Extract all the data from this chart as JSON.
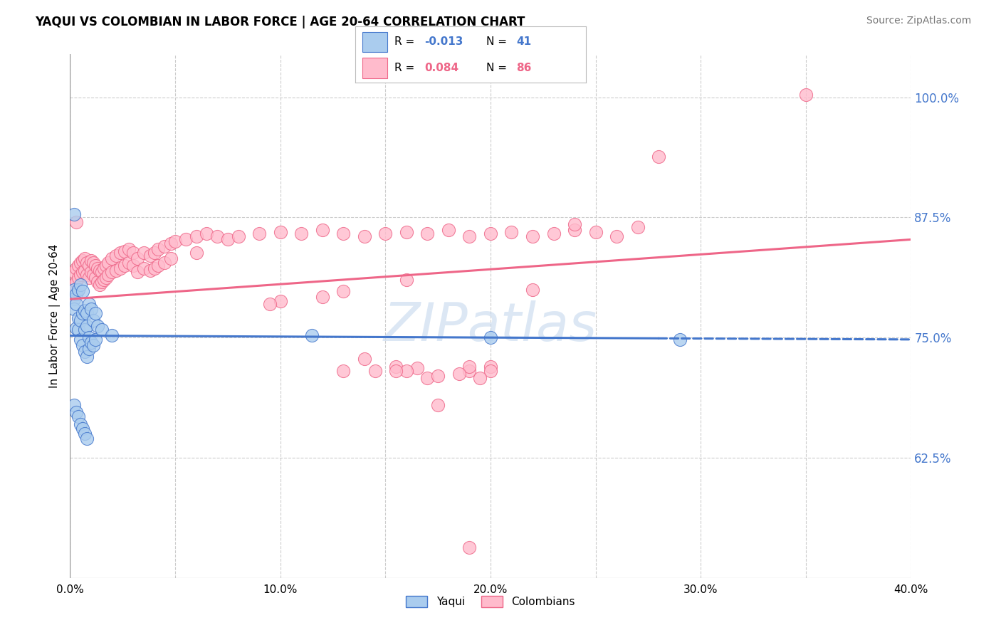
{
  "title": "YAQUI VS COLOMBIAN IN LABOR FORCE | AGE 20-64 CORRELATION CHART",
  "source": "Source: ZipAtlas.com",
  "ylabel": "In Labor Force | Age 20-64",
  "xlim_min": 0.0,
  "xlim_max": 0.4,
  "ylim_min": 0.5,
  "ylim_max": 1.045,
  "ytick_positions": [
    0.625,
    0.75,
    0.875,
    1.0
  ],
  "ytick_labels": [
    "62.5%",
    "75.0%",
    "87.5%",
    "100.0%"
  ],
  "xtick_positions": [
    0.0,
    0.1,
    0.2,
    0.3,
    0.4
  ],
  "xtick_labels": [
    "0.0%",
    "10.0%",
    "20.0%",
    "30.0%",
    "40.0%"
  ],
  "yaqui_fill": "#aaccee",
  "yaqui_edge": "#4477cc",
  "colombian_fill": "#ffbbcc",
  "colombian_edge": "#ee6688",
  "watermark_text": "ZIPatlas",
  "legend_r_yaqui": "-0.013",
  "legend_n_yaqui": "41",
  "legend_r_colombian": "0.084",
  "legend_n_colombian": "86",
  "blue_line_break": 0.28,
  "yaqui_scatter": [
    [
      0.002,
      0.8
    ],
    [
      0.002,
      0.79
    ],
    [
      0.002,
      0.78
    ],
    [
      0.003,
      0.795
    ],
    [
      0.003,
      0.785
    ],
    [
      0.003,
      0.76
    ],
    [
      0.004,
      0.8
    ],
    [
      0.004,
      0.77
    ],
    [
      0.004,
      0.758
    ],
    [
      0.005,
      0.805
    ],
    [
      0.005,
      0.768
    ],
    [
      0.005,
      0.748
    ],
    [
      0.006,
      0.798
    ],
    [
      0.006,
      0.775
    ],
    [
      0.006,
      0.742
    ],
    [
      0.007,
      0.778
    ],
    [
      0.007,
      0.758
    ],
    [
      0.007,
      0.735
    ],
    [
      0.008,
      0.775
    ],
    [
      0.008,
      0.762
    ],
    [
      0.008,
      0.73
    ],
    [
      0.009,
      0.785
    ],
    [
      0.009,
      0.75
    ],
    [
      0.009,
      0.738
    ],
    [
      0.01,
      0.78
    ],
    [
      0.01,
      0.745
    ],
    [
      0.011,
      0.768
    ],
    [
      0.011,
      0.742
    ],
    [
      0.012,
      0.775
    ],
    [
      0.012,
      0.748
    ],
    [
      0.013,
      0.762
    ],
    [
      0.015,
      0.758
    ],
    [
      0.02,
      0.752
    ],
    [
      0.002,
      0.68
    ],
    [
      0.003,
      0.672
    ],
    [
      0.004,
      0.668
    ],
    [
      0.005,
      0.66
    ],
    [
      0.006,
      0.655
    ],
    [
      0.007,
      0.65
    ],
    [
      0.008,
      0.645
    ],
    [
      0.002,
      0.878
    ],
    [
      0.115,
      0.752
    ],
    [
      0.2,
      0.75
    ],
    [
      0.29,
      0.748
    ]
  ],
  "colombian_scatter": [
    [
      0.002,
      0.818
    ],
    [
      0.002,
      0.805
    ],
    [
      0.003,
      0.822
    ],
    [
      0.003,
      0.808
    ],
    [
      0.004,
      0.825
    ],
    [
      0.004,
      0.812
    ],
    [
      0.005,
      0.828
    ],
    [
      0.005,
      0.815
    ],
    [
      0.006,
      0.83
    ],
    [
      0.006,
      0.818
    ],
    [
      0.007,
      0.832
    ],
    [
      0.007,
      0.82
    ],
    [
      0.008,
      0.828
    ],
    [
      0.008,
      0.815
    ],
    [
      0.009,
      0.825
    ],
    [
      0.009,
      0.812
    ],
    [
      0.01,
      0.83
    ],
    [
      0.01,
      0.818
    ],
    [
      0.011,
      0.828
    ],
    [
      0.011,
      0.815
    ],
    [
      0.012,
      0.825
    ],
    [
      0.012,
      0.812
    ],
    [
      0.013,
      0.822
    ],
    [
      0.013,
      0.808
    ],
    [
      0.014,
      0.82
    ],
    [
      0.014,
      0.805
    ],
    [
      0.015,
      0.818
    ],
    [
      0.015,
      0.808
    ],
    [
      0.016,
      0.822
    ],
    [
      0.016,
      0.81
    ],
    [
      0.017,
      0.825
    ],
    [
      0.017,
      0.812
    ],
    [
      0.018,
      0.828
    ],
    [
      0.018,
      0.815
    ],
    [
      0.02,
      0.832
    ],
    [
      0.02,
      0.818
    ],
    [
      0.022,
      0.835
    ],
    [
      0.022,
      0.82
    ],
    [
      0.024,
      0.838
    ],
    [
      0.024,
      0.822
    ],
    [
      0.026,
      0.84
    ],
    [
      0.026,
      0.825
    ],
    [
      0.028,
      0.842
    ],
    [
      0.028,
      0.828
    ],
    [
      0.03,
      0.838
    ],
    [
      0.03,
      0.825
    ],
    [
      0.032,
      0.832
    ],
    [
      0.032,
      0.818
    ],
    [
      0.035,
      0.838
    ],
    [
      0.035,
      0.822
    ],
    [
      0.038,
      0.835
    ],
    [
      0.038,
      0.82
    ],
    [
      0.04,
      0.838
    ],
    [
      0.04,
      0.822
    ],
    [
      0.042,
      0.842
    ],
    [
      0.042,
      0.825
    ],
    [
      0.045,
      0.845
    ],
    [
      0.045,
      0.828
    ],
    [
      0.048,
      0.848
    ],
    [
      0.048,
      0.832
    ],
    [
      0.05,
      0.85
    ],
    [
      0.055,
      0.852
    ],
    [
      0.06,
      0.855
    ],
    [
      0.06,
      0.838
    ],
    [
      0.065,
      0.858
    ],
    [
      0.07,
      0.855
    ],
    [
      0.075,
      0.852
    ],
    [
      0.08,
      0.855
    ],
    [
      0.09,
      0.858
    ],
    [
      0.1,
      0.86
    ],
    [
      0.11,
      0.858
    ],
    [
      0.12,
      0.862
    ],
    [
      0.13,
      0.858
    ],
    [
      0.14,
      0.855
    ],
    [
      0.15,
      0.858
    ],
    [
      0.16,
      0.86
    ],
    [
      0.17,
      0.858
    ],
    [
      0.18,
      0.862
    ],
    [
      0.19,
      0.855
    ],
    [
      0.2,
      0.858
    ],
    [
      0.21,
      0.86
    ],
    [
      0.22,
      0.855
    ],
    [
      0.23,
      0.858
    ],
    [
      0.24,
      0.862
    ],
    [
      0.25,
      0.86
    ],
    [
      0.26,
      0.855
    ],
    [
      0.003,
      0.87
    ],
    [
      0.28,
      0.938
    ],
    [
      0.35,
      1.003
    ],
    [
      0.22,
      0.8
    ],
    [
      0.16,
      0.81
    ],
    [
      0.13,
      0.798
    ],
    [
      0.12,
      0.792
    ],
    [
      0.1,
      0.788
    ],
    [
      0.095,
      0.785
    ],
    [
      0.14,
      0.728
    ],
    [
      0.2,
      0.72
    ],
    [
      0.19,
      0.715
    ],
    [
      0.155,
      0.72
    ],
    [
      0.13,
      0.715
    ],
    [
      0.2,
      0.715
    ],
    [
      0.19,
      0.72
    ],
    [
      0.17,
      0.708
    ],
    [
      0.165,
      0.718
    ],
    [
      0.16,
      0.715
    ],
    [
      0.175,
      0.71
    ],
    [
      0.155,
      0.715
    ],
    [
      0.185,
      0.712
    ],
    [
      0.195,
      0.708
    ],
    [
      0.145,
      0.715
    ],
    [
      0.27,
      0.865
    ],
    [
      0.24,
      0.868
    ],
    [
      0.175,
      0.68
    ],
    [
      0.19,
      0.532
    ]
  ]
}
